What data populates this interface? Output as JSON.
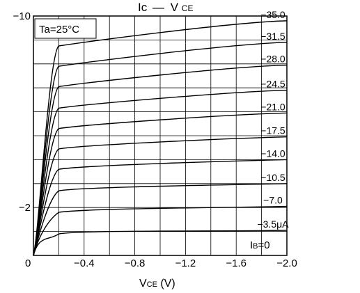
{
  "chart_data": {
    "type": "line",
    "title_main": "Ic",
    "title_dash": "—",
    "title_var": "V",
    "title_sub": "CE",
    "xlabel_main": "V",
    "xlabel_sub": "CE",
    "xlabel_unit": " (V)",
    "ylabel": "",
    "condition_label": "Ta=25°C",
    "xlim": [
      0,
      -2.0
    ],
    "ylim": [
      0,
      -10
    ],
    "grid": true,
    "x_ticks": [
      {
        "value": 0,
        "label": "0"
      },
      {
        "value": -0.4,
        "label": "−0.4"
      },
      {
        "value": -0.8,
        "label": "−0.8"
      },
      {
        "value": -1.2,
        "label": "−1.2"
      },
      {
        "value": -1.6,
        "label": "−1.6"
      },
      {
        "value": -2.0,
        "label": "−2.0"
      }
    ],
    "y_ticks": [
      {
        "value": -10,
        "label": "−10"
      },
      {
        "value": -2,
        "label": "−2"
      }
    ],
    "series": [
      {
        "name": "−35.0",
        "knee_x": -0.2,
        "knee_y": -8.75,
        "end_y": -9.8
      },
      {
        "name": "−31.5",
        "knee_x": -0.2,
        "knee_y": -7.9,
        "end_y": -8.9
      },
      {
        "name": "−28.0",
        "knee_x": -0.2,
        "knee_y": -7.05,
        "end_y": -7.95
      },
      {
        "name": "−24.5",
        "knee_x": -0.2,
        "knee_y": -6.15,
        "end_y": -6.9
      },
      {
        "name": "−21.0",
        "knee_x": -0.2,
        "knee_y": -5.3,
        "end_y": -5.95
      },
      {
        "name": "−17.5",
        "knee_x": -0.2,
        "knee_y": -4.45,
        "end_y": -4.95
      },
      {
        "name": "−14.0",
        "knee_x": -0.2,
        "knee_y": -3.6,
        "end_y": -4.0
      },
      {
        "name": "−10.5",
        "knee_x": -0.2,
        "knee_y": -2.7,
        "end_y": -3.0
      },
      {
        "name": "−7.0",
        "knee_x": -0.2,
        "knee_y": -1.8,
        "end_y": -2.05
      },
      {
        "name": "−3.5μA",
        "knee_x": -0.2,
        "knee_y": -0.9,
        "end_y": -1.05
      }
    ],
    "ib_zero_label": "I",
    "ib_zero_sub": "B",
    "ib_zero_value": "=0"
  }
}
